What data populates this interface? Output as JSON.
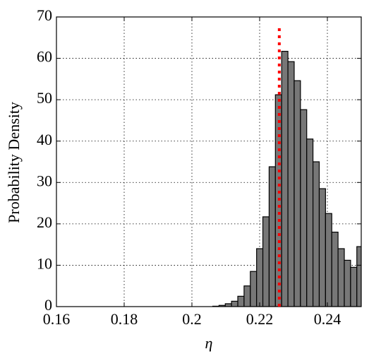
{
  "chart_data": {
    "type": "histogram",
    "x_label": "η",
    "y_label": "Probability Density",
    "bins": [
      0.20615,
      0.208,
      0.20985,
      0.2117,
      0.21355,
      0.2154,
      0.21725,
      0.2191,
      0.22095,
      0.2228,
      0.22465,
      0.2265,
      0.22835,
      0.2302,
      0.23205,
      0.2339,
      0.23575,
      0.2376,
      0.23945,
      0.2413,
      0.24315,
      0.245,
      0.24685,
      0.2487,
      0.25055
    ],
    "values": [
      0.1,
      0.3,
      0.7,
      1.3,
      2.5,
      5,
      8.5,
      14,
      21.7,
      33.8,
      51.2,
      61.7,
      59.2,
      54.6,
      47.6,
      40.5,
      35,
      28.5,
      22.5,
      18,
      14,
      11.2,
      9.5,
      14.5
    ],
    "color": "#777777",
    "reference_x": 0.2258,
    "reference_color": "#ff0000",
    "xlim": [
      0.16,
      0.25
    ],
    "xticks": [
      0.16,
      0.18,
      0.2,
      0.22,
      0.24
    ],
    "ylim": [
      0,
      70
    ],
    "yticks": [
      0,
      10,
      20,
      30,
      40,
      50,
      60,
      70
    ],
    "grid": true
  }
}
